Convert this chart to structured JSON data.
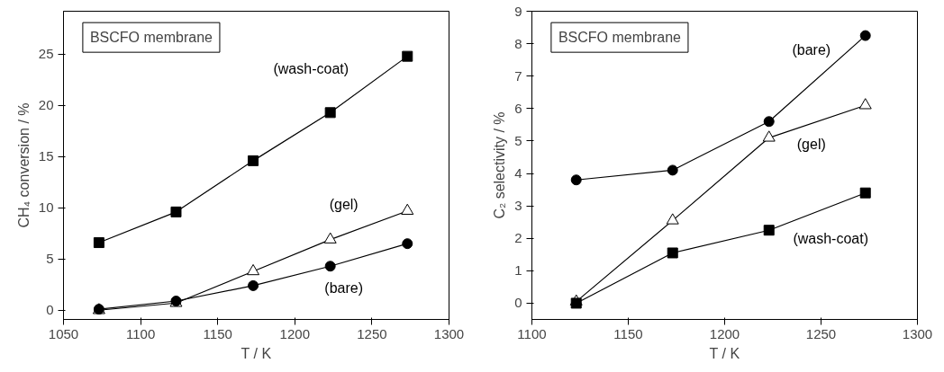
{
  "chart_data": [
    {
      "type": "line",
      "xlabel": "T / K",
      "ylabel": "CH₄ conversion / %",
      "xlim": [
        1050,
        1300
      ],
      "ylim": [
        -0.9,
        29.2
      ],
      "xticks": [
        1050,
        1100,
        1150,
        1200,
        1250,
        1300
      ],
      "yticks": [
        0,
        5,
        10,
        15,
        20,
        25
      ],
      "grid": false,
      "x": [
        1073,
        1123,
        1173,
        1223,
        1273
      ],
      "series": [
        {
          "name": "(wash-coat)",
          "color": "#000000",
          "marker": "square",
          "values": [
            6.6,
            9.6,
            14.6,
            19.3,
            24.8
          ]
        },
        {
          "name": "(gel)",
          "color": "#000000",
          "marker": "triangle",
          "values": [
            0.0,
            0.7,
            3.8,
            6.9,
            9.7
          ]
        },
        {
          "name": "(bare)",
          "color": "#000000",
          "marker": "circle",
          "values": [
            0.1,
            0.9,
            2.4,
            4.3,
            6.5
          ]
        }
      ],
      "annotations": [
        "BSCFO membrane"
      ]
    },
    {
      "type": "line",
      "xlabel": "T / K",
      "ylabel": "C₂ selectivity / %",
      "xlim": [
        1100,
        1300
      ],
      "ylim": [
        -0.5,
        9
      ],
      "xticks": [
        1100,
        1150,
        1200,
        1250,
        1300
      ],
      "yticks": [
        0,
        1,
        2,
        3,
        4,
        5,
        6,
        7,
        8,
        9
      ],
      "grid": false,
      "x": [
        1123,
        1173,
        1223,
        1273
      ],
      "series": [
        {
          "name": "(bare)",
          "color": "#000000",
          "marker": "circle",
          "values": [
            3.8,
            4.1,
            5.6,
            8.25
          ]
        },
        {
          "name": "(gel)",
          "color": "#000000",
          "marker": "triangle",
          "values": [
            0.05,
            2.55,
            5.1,
            6.1
          ]
        },
        {
          "name": "(wash-coat)",
          "color": "#000000",
          "marker": "square",
          "values": [
            0.0,
            1.55,
            2.25,
            3.4
          ]
        }
      ],
      "annotations": [
        "BSCFO membrane"
      ]
    }
  ]
}
